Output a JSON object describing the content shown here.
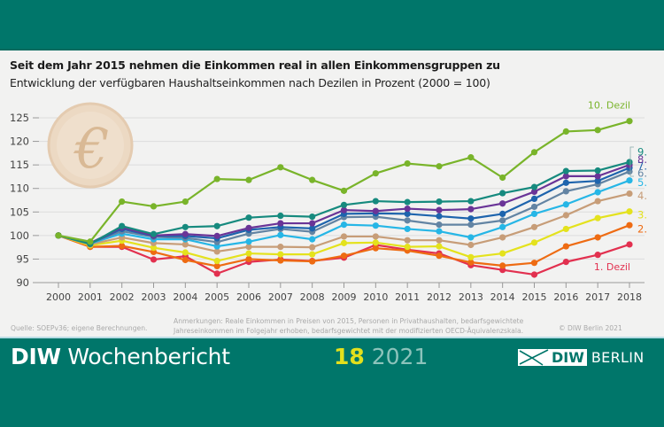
{
  "header": {
    "title": "Seit dem Jahr 2015 nehmen die Einkommen real in allen Einkommensgruppen zu",
    "subtitle": "Entwicklung der verfügbaren Haushaltseinkommen nach Dezilen in Prozent (2000 = 100)"
  },
  "chart_data": {
    "type": "line",
    "title": "Seit dem Jahr 2015 nehmen die Einkommen real in allen Einkommensgruppen zu",
    "subtitle": "Entwicklung der verfügbaren Haushaltseinkommen nach Dezilen in Prozent (2000 = 100)",
    "xlabel": "",
    "ylabel": "",
    "x": [
      "2000",
      "2001",
      "2002",
      "2003",
      "2004",
      "2005",
      "2006",
      "2007",
      "2008",
      "2009",
      "2010",
      "2011",
      "2012",
      "2013",
      "2014",
      "2015",
      "2016",
      "2017",
      "2018"
    ],
    "ylim": [
      90,
      125
    ],
    "yticks": [
      90,
      95,
      100,
      105,
      110,
      115,
      120,
      125
    ],
    "grid": true,
    "decoration": "euro-coin",
    "series": [
      {
        "name": "1. Dezil",
        "label": "1. Dezil",
        "color": "#e2304f",
        "values": [
          100,
          97.6,
          97.6,
          94.9,
          95.6,
          91.9,
          94.4,
          94.9,
          94.6,
          95.3,
          98.0,
          97.0,
          96.2,
          93.7,
          92.7,
          91.7,
          94.4,
          95.9,
          98.1
        ]
      },
      {
        "name": "2. Dezil",
        "label": "2.",
        "color": "#ee6b12",
        "values": [
          100,
          97.6,
          97.8,
          96.5,
          94.8,
          93.5,
          95.0,
          94.7,
          94.5,
          95.7,
          97.3,
          96.8,
          95.7,
          94.3,
          93.6,
          94.2,
          97.7,
          99.6,
          102.2
        ]
      },
      {
        "name": "3. Dezil",
        "label": "3.",
        "color": "#e4e21d",
        "values": [
          100,
          97.9,
          98.9,
          97.4,
          96.4,
          94.6,
          96.2,
          96.0,
          96.0,
          98.4,
          98.5,
          97.6,
          97.7,
          95.4,
          96.2,
          98.5,
          101.4,
          103.7,
          105.1
        ]
      },
      {
        "name": "4. Dezil",
        "label": "4.",
        "color": "#c79d78",
        "values": [
          100,
          98.1,
          99.6,
          98.4,
          98.1,
          96.6,
          97.6,
          97.6,
          97.5,
          99.8,
          99.8,
          99.0,
          99.0,
          98.0,
          99.6,
          101.8,
          104.3,
          107.3,
          108.9
        ]
      },
      {
        "name": "5. Dezil",
        "label": "5.",
        "color": "#26b6e6",
        "values": [
          100,
          98.3,
          100.4,
          99.2,
          99.2,
          97.7,
          98.7,
          100.1,
          99.2,
          102.3,
          102.1,
          101.4,
          100.9,
          99.6,
          101.8,
          104.6,
          106.6,
          109.2,
          111.7
        ]
      },
      {
        "name": "6. Dezil",
        "label": "6.",
        "color": "#6384a3",
        "values": [
          100,
          98.4,
          100.9,
          99.7,
          99.5,
          98.6,
          100.4,
          101.4,
          100.8,
          103.9,
          104.0,
          103.2,
          102.3,
          102.3,
          103.2,
          106.1,
          109.4,
          110.9,
          113.6
        ]
      },
      {
        "name": "7. Dezil",
        "label": "7.",
        "color": "#1e64ad",
        "values": [
          100,
          98.3,
          101.4,
          99.9,
          99.9,
          99.4,
          101.2,
          101.8,
          101.5,
          104.6,
          104.7,
          104.6,
          104.1,
          103.6,
          104.6,
          107.8,
          111.2,
          111.6,
          114.4
        ]
      },
      {
        "name": "8. Dezil",
        "label": "8.",
        "color": "#6a3497",
        "values": [
          100,
          98.4,
          101.7,
          100.0,
          100.3,
          99.9,
          101.6,
          102.6,
          102.6,
          105.4,
          105.2,
          105.7,
          105.4,
          105.6,
          106.8,
          109.3,
          112.6,
          112.6,
          115.0
        ]
      },
      {
        "name": "9. Dezil",
        "label": "9.",
        "color": "#168a7e",
        "values": [
          100,
          98.2,
          102.0,
          100.3,
          101.8,
          102.0,
          103.8,
          104.2,
          104.0,
          106.5,
          107.3,
          107.1,
          107.2,
          107.3,
          109.0,
          110.3,
          113.7,
          113.8,
          115.6
        ]
      },
      {
        "name": "10. Dezil",
        "label": "10. Dezil",
        "color": "#79b42a",
        "values": [
          100,
          98.7,
          107.2,
          106.2,
          107.2,
          112.0,
          111.8,
          114.5,
          111.8,
          109.5,
          113.2,
          115.3,
          114.7,
          116.6,
          112.3,
          117.7,
          122.1,
          122.4,
          124.3
        ]
      }
    ]
  },
  "notes": {
    "source": "Quelle: SOEPv36; eigene Berechnungen.",
    "remarks_line1": "Anmerkungen: Reale Einkommen in Preisen von 2015, Personen in Privathaushalten, bedarfsgewichtete",
    "remarks_line2": "Jahreseinkommen im Folgejahr erhoben, bedarfsgewichtet mit der modifizierten OECD-Äquivalenzskala.",
    "copyright": "© DIW Berlin 2021"
  },
  "banner": {
    "brand_bold": "DIW",
    "brand_rest": " Wochenbericht",
    "issue_number": "18",
    "issue_year": "2021",
    "logo_box": "DIW",
    "logo_text": "BERLIN"
  },
  "colors": {
    "brand_teal": "#00766a",
    "issue_yellow": "#e3e01c",
    "coin": "#e9d3b9"
  }
}
